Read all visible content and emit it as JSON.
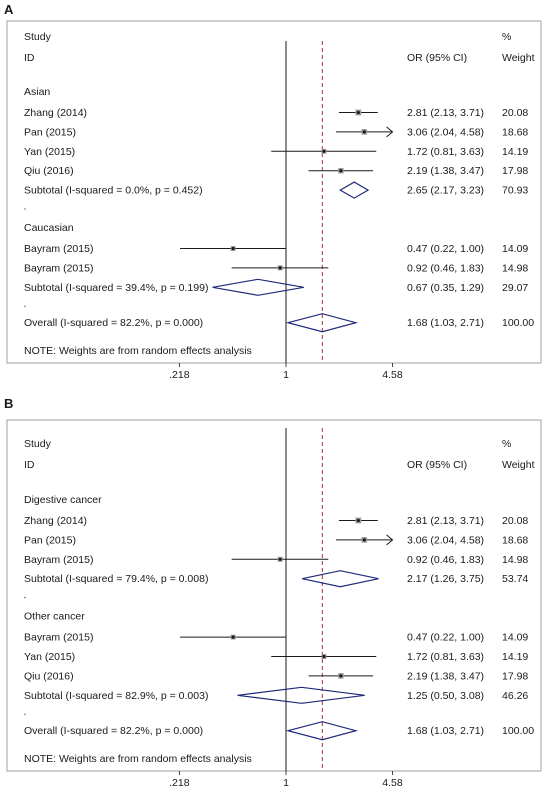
{
  "chart_data": [
    {
      "type": "forest",
      "panel_label": "A",
      "header": {
        "study": "Study",
        "id": "ID",
        "or_ci": "OR (95% CI)",
        "pct": "%",
        "weight": "Weight"
      },
      "axis": {
        "scale": "log",
        "range": [
          0.2,
          7.0
        ],
        "ticks": [
          ".218",
          "1",
          "4.58"
        ],
        "tick_values": [
          0.218,
          1,
          4.58
        ]
      },
      "overall_line": 1.68,
      "groups": [
        {
          "name": "Asian",
          "studies": [
            {
              "label": "Zhang (2014)",
              "or": 2.81,
              "lo": 2.13,
              "hi": 3.71,
              "text": "2.81 (2.13, 3.71)",
              "weight": "20.08"
            },
            {
              "label": "Pan (2015)",
              "or": 3.06,
              "lo": 2.04,
              "hi": 4.58,
              "text": "3.06 (2.04, 4.58)",
              "weight": "18.68",
              "arrow_right": true
            },
            {
              "label": "Yan (2015)",
              "or": 1.72,
              "lo": 0.81,
              "hi": 3.63,
              "text": "1.72 (0.81, 3.63)",
              "weight": "14.19"
            },
            {
              "label": "Qiu (2016)",
              "or": 2.19,
              "lo": 1.38,
              "hi": 3.47,
              "text": "2.19 (1.38, 3.47)",
              "weight": "17.98"
            }
          ],
          "subtotal": {
            "label": "Subtotal  (I-squared = 0.0%, p = 0.452)",
            "or": 2.65,
            "lo": 2.17,
            "hi": 3.23,
            "text": "2.65 (2.17, 3.23)",
            "weight": "70.93"
          }
        },
        {
          "name": "Caucasian",
          "studies": [
            {
              "label": "Bayram (2015)",
              "or": 0.47,
              "lo": 0.22,
              "hi": 1.0,
              "text": "0.47 (0.22, 1.00)",
              "weight": "14.09"
            },
            {
              "label": "Bayram (2015)",
              "or": 0.92,
              "lo": 0.46,
              "hi": 1.83,
              "text": "0.92 (0.46, 1.83)",
              "weight": "14.98"
            }
          ],
          "subtotal": {
            "label": "Subtotal  (I-squared = 39.4%, p = 0.199)",
            "or": 0.67,
            "lo": 0.35,
            "hi": 1.29,
            "text": "0.67 (0.35, 1.29)",
            "weight": "29.07"
          }
        }
      ],
      "overall": {
        "label": "Overall  (I-squared = 82.2%, p = 0.000)",
        "or": 1.68,
        "lo": 1.03,
        "hi": 2.71,
        "text": "1.68 (1.03, 2.71)",
        "weight": "100.00"
      },
      "note": "NOTE: Weights are from random effects analysis"
    },
    {
      "type": "forest",
      "panel_label": "B",
      "header": {
        "study": "Study",
        "id": "ID",
        "or_ci": "OR (95% CI)",
        "pct": "%",
        "weight": "Weight"
      },
      "axis": {
        "scale": "log",
        "range": [
          0.2,
          7.0
        ],
        "ticks": [
          ".218",
          "1",
          "4.58"
        ],
        "tick_values": [
          0.218,
          1,
          4.58
        ]
      },
      "overall_line": 1.68,
      "groups": [
        {
          "name": "Digestive cancer",
          "studies": [
            {
              "label": "Zhang (2014)",
              "or": 2.81,
              "lo": 2.13,
              "hi": 3.71,
              "text": "2.81 (2.13, 3.71)",
              "weight": "20.08"
            },
            {
              "label": "Pan (2015)",
              "or": 3.06,
              "lo": 2.04,
              "hi": 4.58,
              "text": "3.06 (2.04, 4.58)",
              "weight": "18.68",
              "arrow_right": true
            },
            {
              "label": "Bayram (2015)",
              "or": 0.92,
              "lo": 0.46,
              "hi": 1.83,
              "text": "0.92 (0.46, 1.83)",
              "weight": "14.98"
            }
          ],
          "subtotal": {
            "label": "Subtotal  (I-squared = 79.4%, p = 0.008)",
            "or": 2.17,
            "lo": 1.26,
            "hi": 3.75,
            "text": "2.17 (1.26, 3.75)",
            "weight": "53.74"
          }
        },
        {
          "name": "Other cancer",
          "studies": [
            {
              "label": "Bayram (2015)",
              "or": 0.47,
              "lo": 0.22,
              "hi": 1.0,
              "text": "0.47 (0.22, 1.00)",
              "weight": "14.09"
            },
            {
              "label": "Yan (2015)",
              "or": 1.72,
              "lo": 0.81,
              "hi": 3.63,
              "text": "1.72 (0.81, 3.63)",
              "weight": "14.19"
            },
            {
              "label": "Qiu (2016)",
              "or": 2.19,
              "lo": 1.38,
              "hi": 3.47,
              "text": "2.19 (1.38, 3.47)",
              "weight": "17.98"
            }
          ],
          "subtotal": {
            "label": "Subtotal  (I-squared = 82.9%, p = 0.003)",
            "or": 1.25,
            "lo": 0.5,
            "hi": 3.08,
            "text": "1.25 (0.50, 3.08)",
            "weight": "46.26"
          }
        }
      ],
      "overall": {
        "label": "Overall  (I-squared = 82.2%, p = 0.000)",
        "or": 1.68,
        "lo": 1.03,
        "hi": 2.71,
        "text": "1.68 (1.03, 2.71)",
        "weight": "100.00"
      },
      "note": "NOTE: Weights are from random effects analysis"
    }
  ],
  "colors": {
    "diamond": "#1f2a7a",
    "reference_line": "#a83232",
    "ink": "#1a1a1a",
    "frame": "#888888"
  }
}
